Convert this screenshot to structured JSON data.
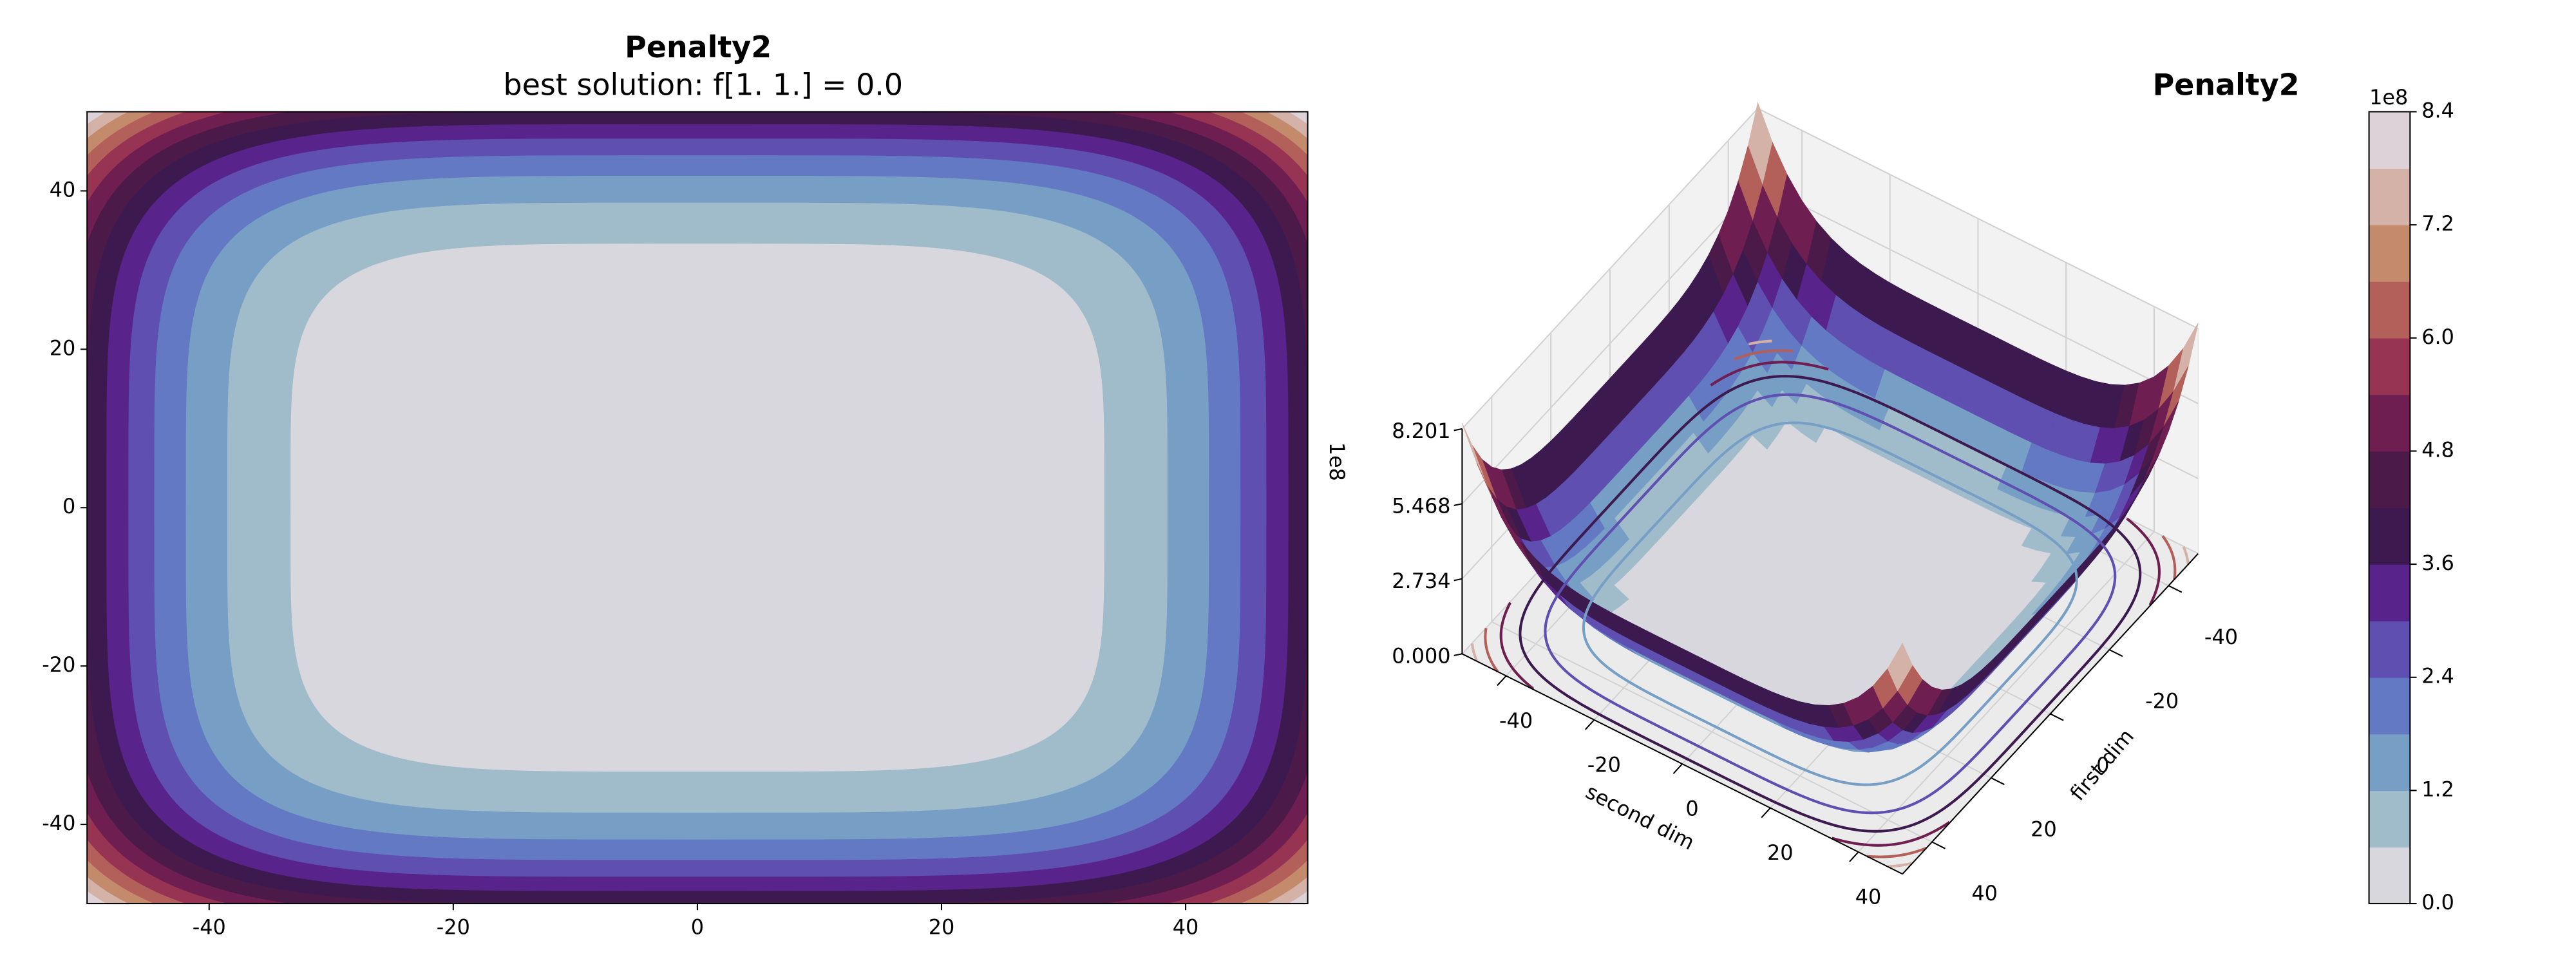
{
  "chart_data": [
    {
      "type": "contour",
      "title": "Penalty2",
      "subtitle": "best solution: f[1. 1.] = 0.0",
      "xlim": [
        -50,
        50
      ],
      "ylim": [
        -50,
        50
      ],
      "xticks": [
        -40,
        -20,
        0,
        20,
        40
      ],
      "yticks": [
        -40,
        -20,
        0,
        20,
        40
      ]
    },
    {
      "type": "surface3d",
      "title": "Penalty2",
      "xlabel": "first dim",
      "ylabel": "second dim",
      "xlim": [
        -50,
        50
      ],
      "ylim": [
        -50,
        50
      ],
      "xticks": [
        -40,
        -20,
        0,
        20,
        40
      ],
      "yticks": [
        -40,
        -20,
        0,
        20,
        40
      ],
      "zlim": [
        0,
        820100000
      ],
      "zticks": [
        {
          "value": 0,
          "label": "0.000"
        },
        {
          "value": 273400000,
          "label": "2.734"
        },
        {
          "value": 546800000,
          "label": "5.468"
        },
        {
          "value": 820100000,
          "label": "8.201"
        }
      ],
      "z_offset_label": "1e8"
    },
    {
      "type": "colorbar",
      "offset_label": "1e8",
      "ylim": [
        0,
        840000000
      ],
      "levels": [
        0,
        60000000,
        120000000,
        180000000,
        240000000,
        300000000,
        360000000,
        420000000,
        480000000,
        540000000,
        600000000,
        660000000,
        720000000,
        780000000,
        840000000
      ],
      "colors": [
        "#d7d7dd",
        "#a0bccb",
        "#779fc6",
        "#6379c4",
        "#5e4fb0",
        "#58238a",
        "#3c1a50",
        "#4b1a48",
        "#6e1e50",
        "#973353",
        "#b35f5a",
        "#c48a6c",
        "#d4b2a8",
        "#ddd2d8"
      ],
      "ticks": [
        {
          "value": 0,
          "label": "0.0"
        },
        {
          "value": 120000000,
          "label": "1.2"
        },
        {
          "value": 240000000,
          "label": "2.4"
        },
        {
          "value": 360000000,
          "label": "3.6"
        },
        {
          "value": 480000000,
          "label": "4.8"
        },
        {
          "value": 600000000,
          "label": "6.0"
        },
        {
          "value": 720000000,
          "label": "7.2"
        },
        {
          "value": 840000000,
          "label": "8.4"
        }
      ]
    }
  ]
}
